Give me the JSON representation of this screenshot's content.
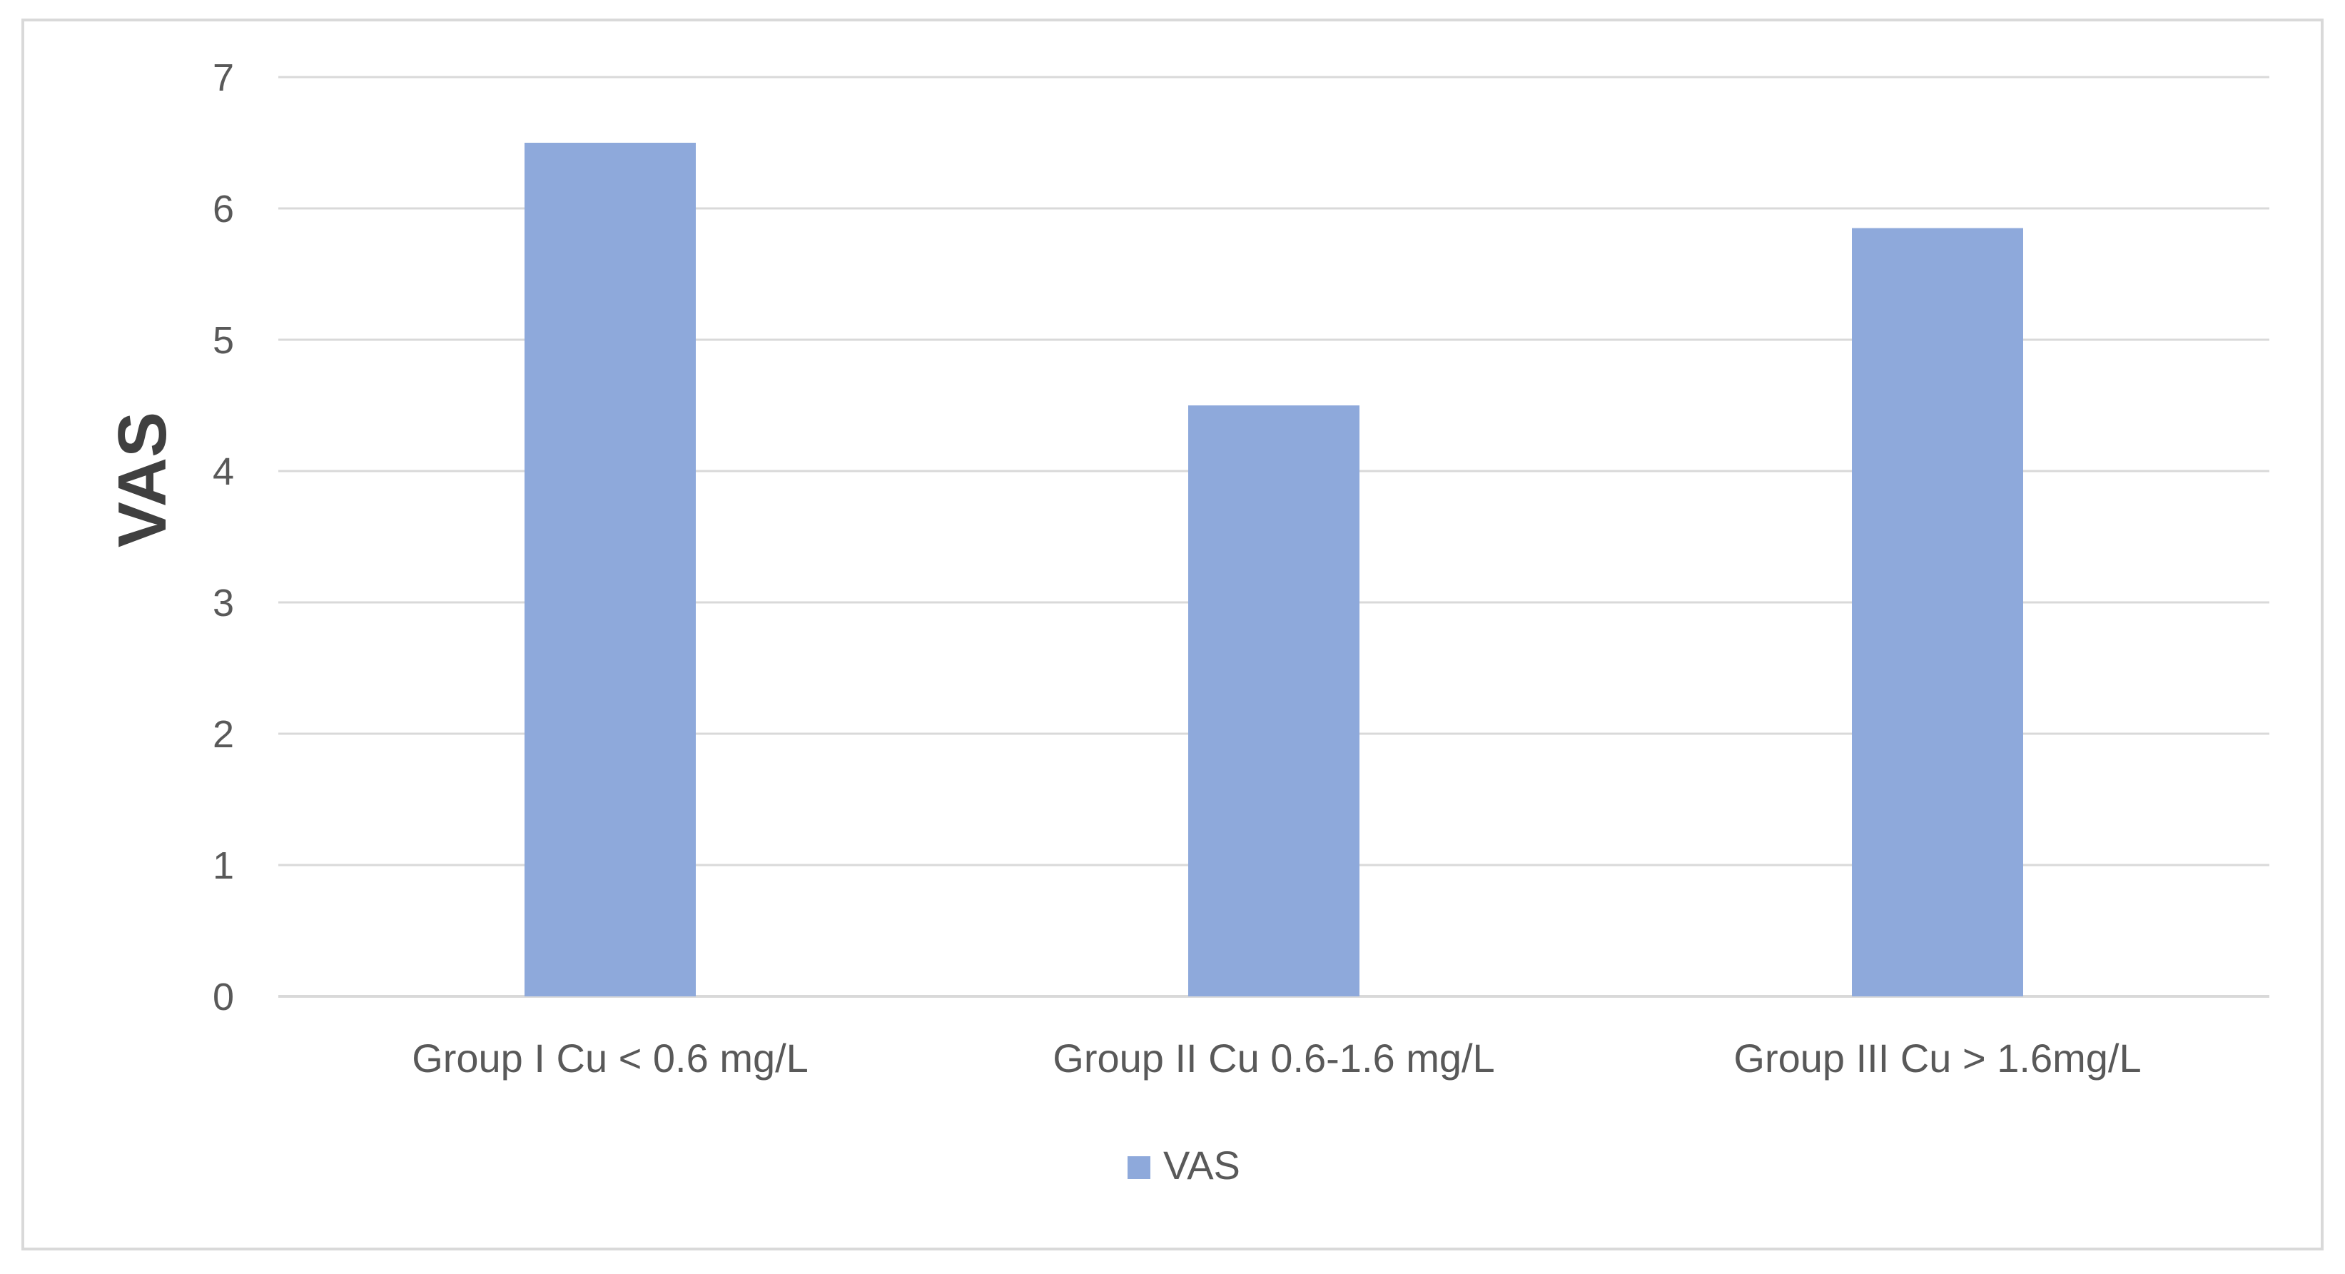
{
  "chart_data": {
    "type": "bar",
    "categories": [
      "Group I Cu < 0.6 mg/L",
      "Group II Cu 0.6-1.6 mg/L",
      "Group III Cu > 1.6mg/L"
    ],
    "series": [
      {
        "name": "VAS",
        "values": [
          6.5,
          4.5,
          5.85
        ],
        "color": "#8EA9DB"
      }
    ],
    "title": "",
    "xlabel": "",
    "ylabel": "VAS",
    "ylim": [
      0,
      7
    ],
    "yticks": [
      0,
      1,
      2,
      3,
      4,
      5,
      6,
      7
    ],
    "grid": true,
    "legend_position": "bottom",
    "colors": {
      "gridline": "#D9D9D9",
      "frame": "#D9D9D9",
      "tick_text": "#595959"
    }
  }
}
